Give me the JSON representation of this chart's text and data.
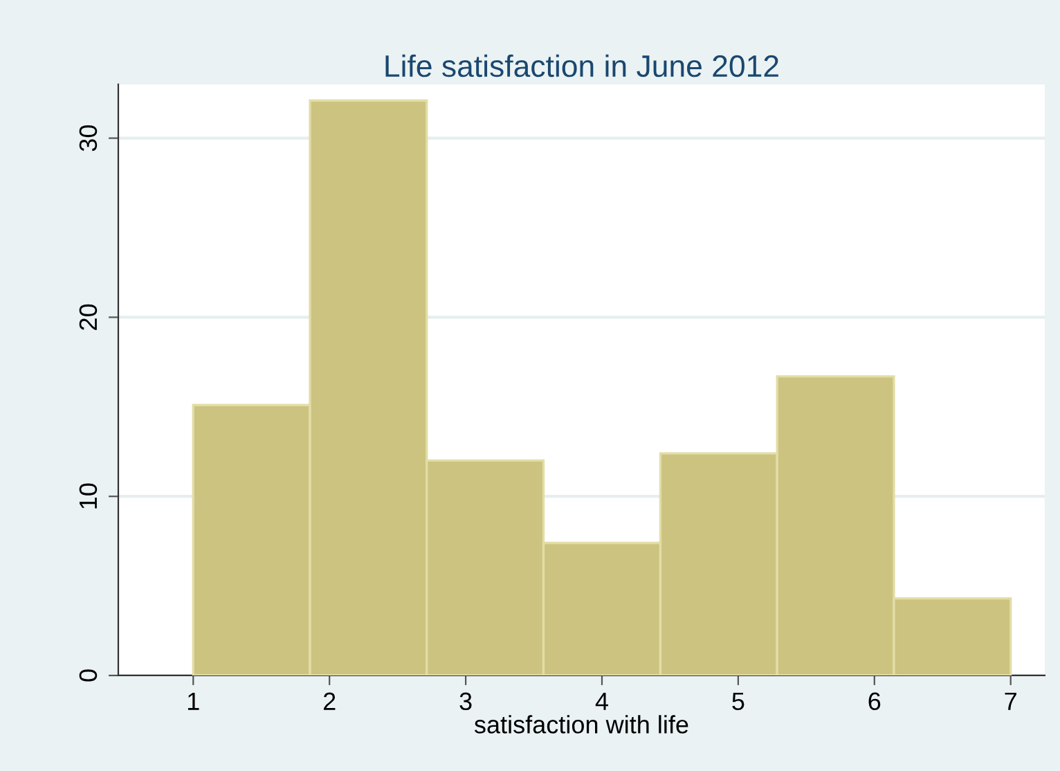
{
  "chart_data": {
    "type": "histogram",
    "title": "Life satisfaction in June 2012",
    "xlabel": "satisfaction with life",
    "bins": [
      1,
      1.857,
      2.714,
      3.571,
      4.429,
      5.286,
      6.143,
      7
    ],
    "values": [
      15.1,
      32.1,
      12.0,
      7.4,
      12.4,
      16.7,
      4.3
    ],
    "color": "#cbc37f",
    "xlim": [
      0.45,
      7.25
    ],
    "ylim": [
      0,
      33
    ],
    "xticks": [
      1,
      2,
      3,
      4,
      5,
      6,
      7
    ],
    "yticks": [
      0,
      10,
      20,
      30
    ],
    "grid": "y"
  }
}
